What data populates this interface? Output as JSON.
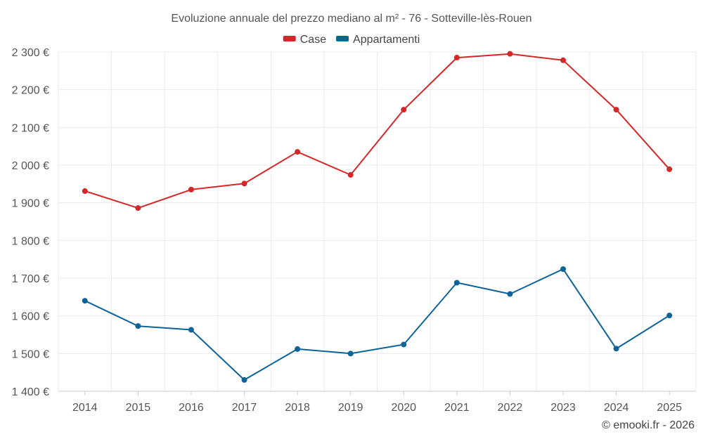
{
  "chart_data": {
    "type": "line",
    "title": "Evoluzione annuale del prezzo mediano al m² - 76 - Sotteville-lès-Rouen",
    "categories": [
      "2014",
      "2015",
      "2016",
      "2017",
      "2018",
      "2019",
      "2020",
      "2021",
      "2022",
      "2023",
      "2024",
      "2025"
    ],
    "series": [
      {
        "name": "Case",
        "color": "#d62728",
        "values": [
          1931,
          1886,
          1935,
          1951,
          2035,
          1974,
          2147,
          2285,
          2295,
          2278,
          2147,
          1989
        ]
      },
      {
        "name": "Appartamenti",
        "color": "#0c6399",
        "values": [
          1640,
          1573,
          1563,
          1430,
          1512,
          1500,
          1524,
          1688,
          1658,
          1724,
          1513,
          1601
        ]
      }
    ],
    "y_ticks": [
      1400,
      1500,
      1600,
      1700,
      1800,
      1900,
      2000,
      2100,
      2200,
      2300
    ],
    "y_tick_labels": [
      "1 400 €",
      "1 500 €",
      "1 600 €",
      "1 700 €",
      "1 800 €",
      "1 900 €",
      "2 000 €",
      "2 100 €",
      "2 200 €",
      "2 300 €"
    ],
    "ylim": [
      1400,
      2300
    ],
    "xlabel": "",
    "ylabel": "",
    "grid": true,
    "legend_position": "top-center"
  },
  "credit": "© emooki.fr - 2026"
}
